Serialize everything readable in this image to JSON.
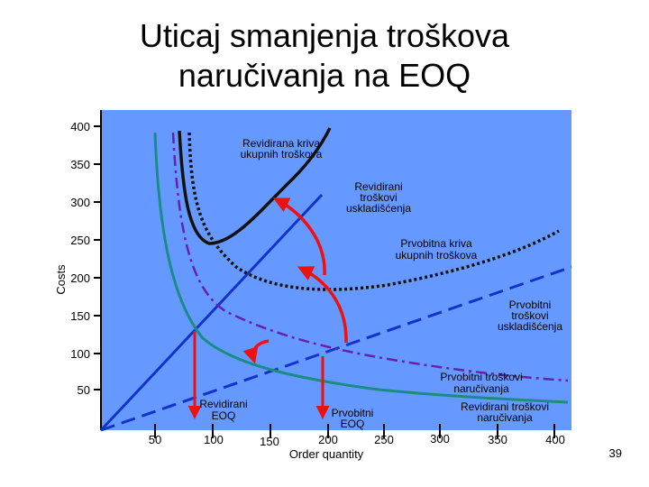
{
  "title_line1": "Uticaj smanjenja troškova",
  "title_line2": "naručivanja na EOQ",
  "slide_number": "39",
  "chart_data": {
    "type": "line",
    "title": "Uticaj smanjenja troškova naručivanja na EOQ",
    "xlabel": "Order quantity",
    "ylabel": "Costs",
    "y_ticks": [
      "400",
      "350",
      "300",
      "250",
      "200",
      "150",
      "100",
      "50"
    ],
    "x_ticks": [
      "50",
      "100",
      "150",
      "200",
      "250",
      "300",
      "350",
      "400"
    ],
    "eoq_labels": {
      "revised": [
        "Revidirani",
        "EOQ"
      ],
      "original": [
        "Prvobitni",
        "EOQ"
      ]
    },
    "series": [
      {
        "name": "Revidirana kriva ukupnih troškova",
        "label_lines": [
          "Revidirana kriva",
          "ukupnih troškova"
        ]
      },
      {
        "name": "Revidirani troškovi uskladišćenja",
        "label_lines": [
          "Revidirani",
          "troškovi",
          "uskladišćenja"
        ]
      },
      {
        "name": "Prvobitna kriva ukupnih troškova",
        "label_lines": [
          "Prvobitna kriva",
          "ukupnih troškova"
        ]
      },
      {
        "name": "Prvobitni troškovi uskladišćenja",
        "label_lines": [
          "Prvobitni",
          "troškovi",
          "uskladišćenja"
        ]
      },
      {
        "name": "Prvobitni troškovi naručivanja",
        "label_lines": [
          "Prvobitni troškovi",
          "naručivanja"
        ]
      },
      {
        "name": "Revidirani troškovi naručivanja",
        "label_lines": [
          "Revidirani troškovi",
          "naručivanja"
        ]
      }
    ],
    "colors": {
      "plot_bg": "#6699ff",
      "revised_total": "#111111",
      "revised_holding": "#1133cc",
      "original_total": "#111111",
      "original_holding": "#1133cc",
      "original_ordering": "#6622aa",
      "revised_ordering": "#1a8c86",
      "arrows": "#ee1111"
    }
  }
}
